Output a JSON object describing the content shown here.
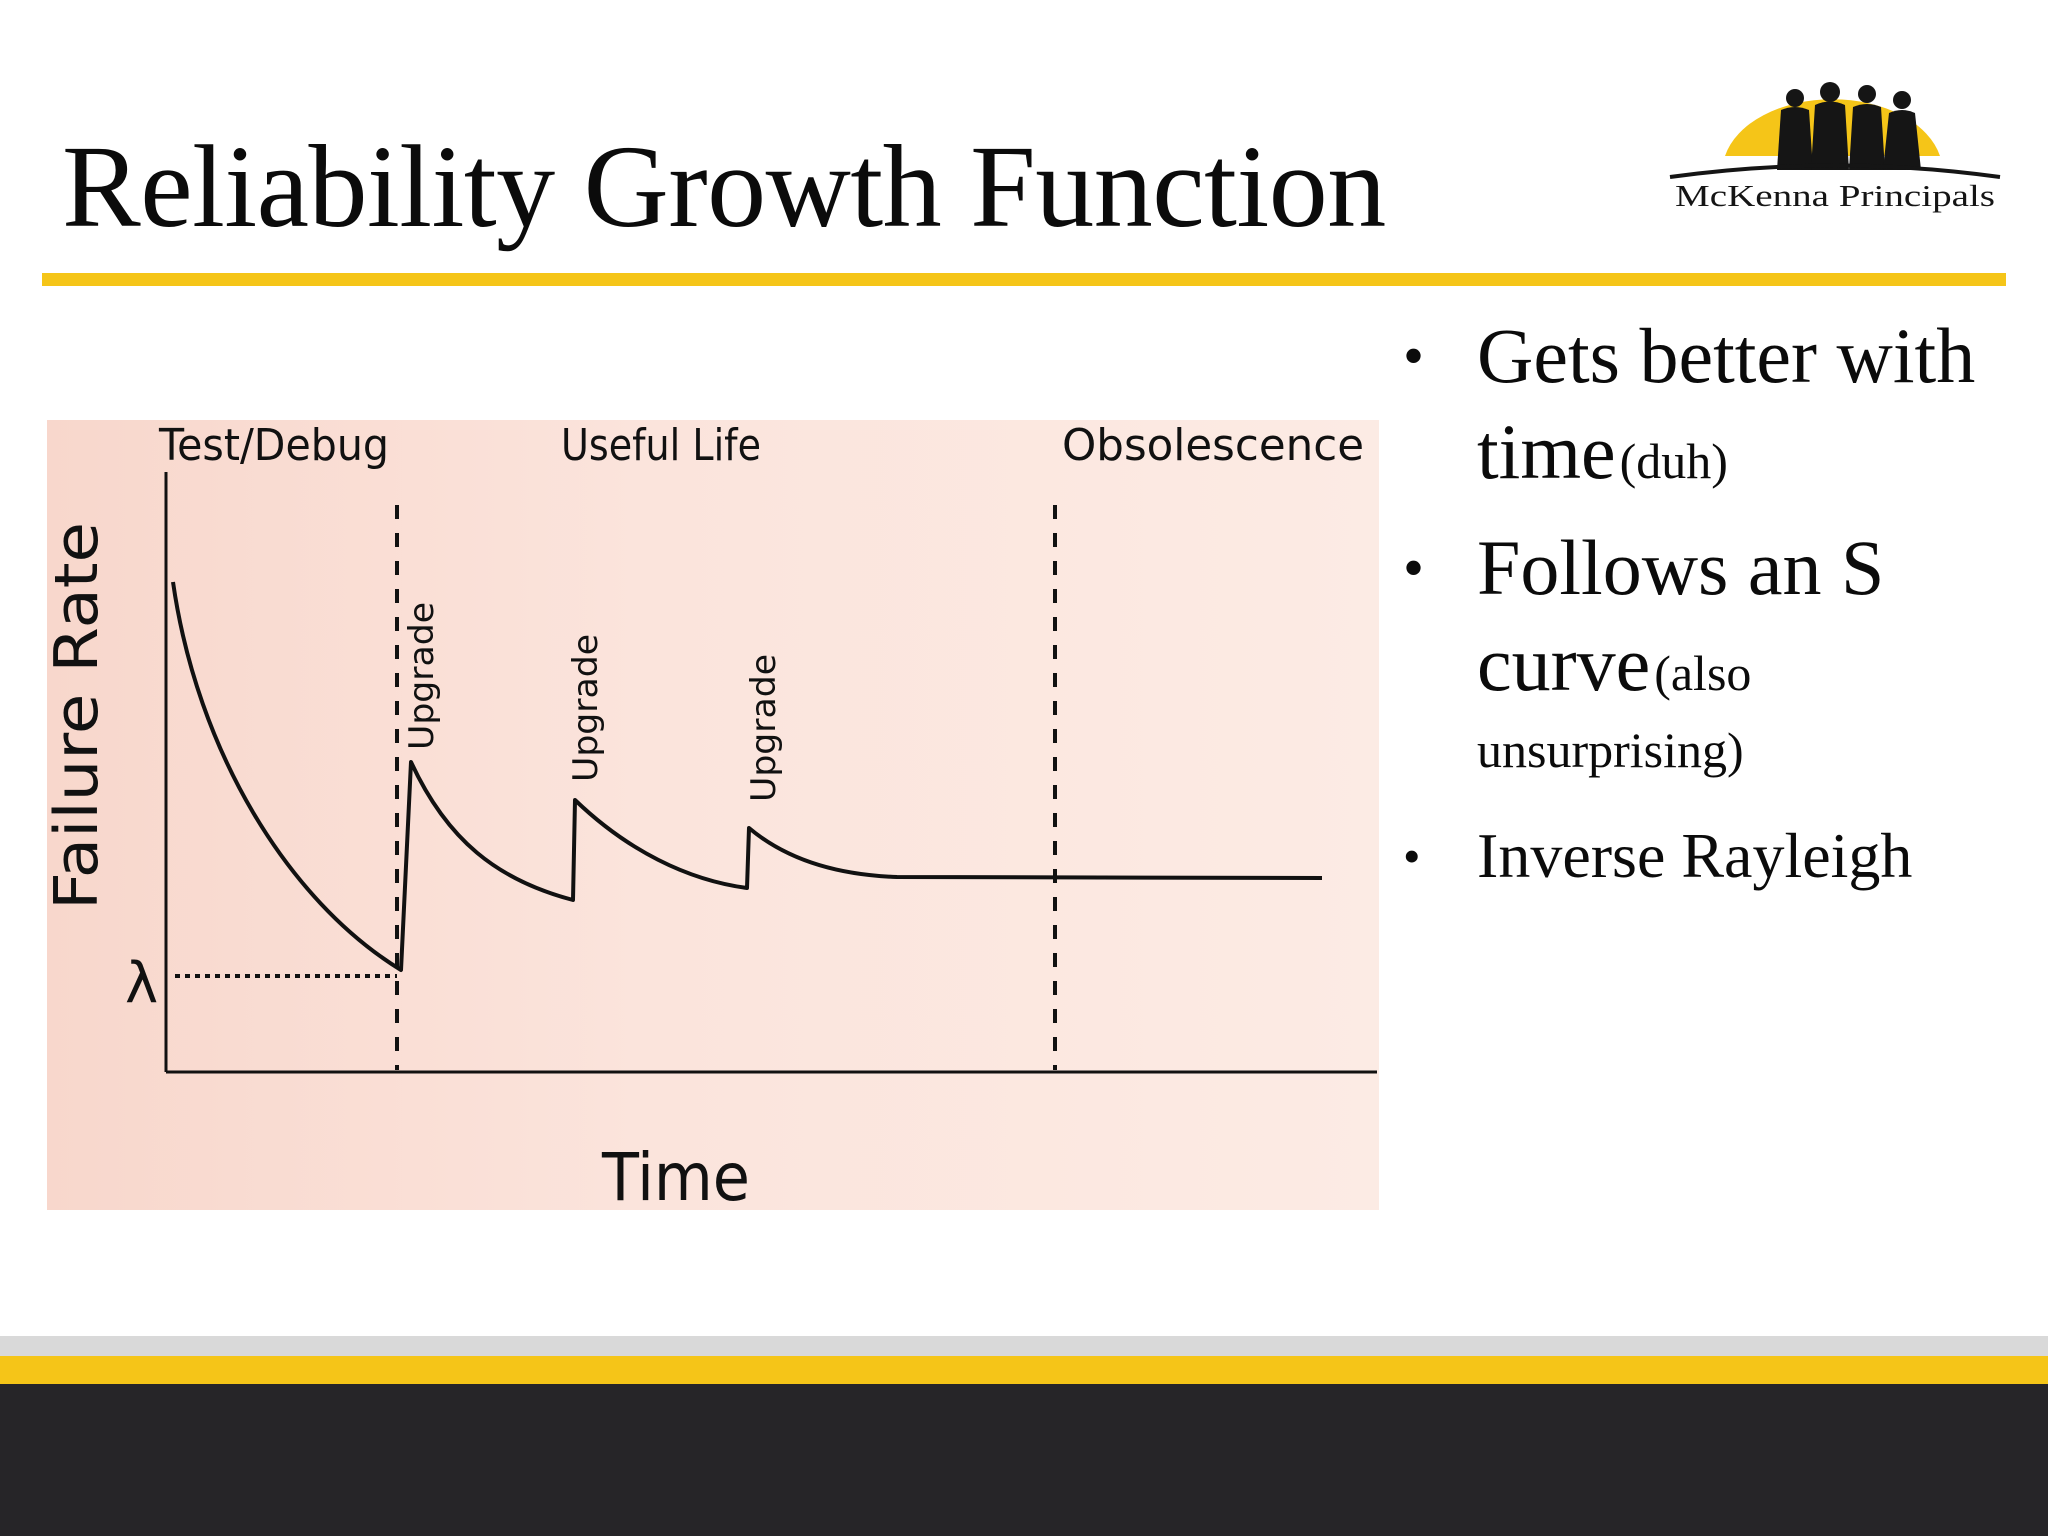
{
  "slide": {
    "title": "Reliability Growth Function",
    "logo_text": "McKenna Principals"
  },
  "colors": {
    "accent_gold": "#f5c518",
    "footer_dark": "#262528",
    "chart_background": "#fbe3da"
  },
  "bullets": [
    {
      "main": "Gets better with time",
      "note": "(duh)"
    },
    {
      "main": "Follows an S curve",
      "note": "(also unsurprising)"
    },
    {
      "main": "Inverse Rayleigh",
      "note": ""
    }
  ],
  "figure": {
    "phase_labels": [
      "Test/Debug",
      "Useful Life",
      "Obsolescence"
    ],
    "y_axis_label": "Failure Rate",
    "x_axis_label": "Time",
    "lambda_label": "λ",
    "upgrade_labels": [
      "Upgrade",
      "Upgrade",
      "Upgrade"
    ]
  }
}
